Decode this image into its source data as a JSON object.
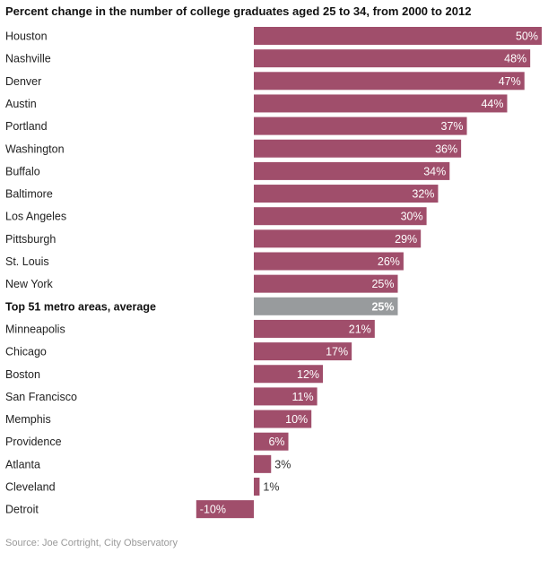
{
  "title": "Percent change in the number of college graduates aged 25 to 34, from 2000 to 2012",
  "source": "Source: Joe Cortright, City Observatory",
  "colors": {
    "bar": "#a04e6b",
    "highlight_bar": "#989b9d",
    "label_inside": "#ffffff",
    "label_outside": "#333333"
  },
  "chart_data": {
    "type": "bar",
    "orientation": "horizontal",
    "title": "Percent change in the number of college graduates aged 25 to 34, from 2000 to 2012",
    "xlabel": "",
    "ylabel": "",
    "xlim": [
      -10,
      50
    ],
    "grid": false,
    "value_suffix": "%",
    "highlight_category": "Top 51 metro areas, average",
    "categories": [
      "Houston",
      "Nashville",
      "Denver",
      "Austin",
      "Portland",
      "Washington",
      "Buffalo",
      "Baltimore",
      "Los Angeles",
      "Pittsburgh",
      "St. Louis",
      "New York",
      "Top 51 metro areas, average",
      "Minneapolis",
      "Chicago",
      "Boston",
      "San Francisco",
      "Memphis",
      "Providence",
      "Atlanta",
      "Cleveland",
      "Detroit"
    ],
    "values": [
      50,
      48,
      47,
      44,
      37,
      36,
      34,
      32,
      30,
      29,
      26,
      25,
      25,
      21,
      17,
      12,
      11,
      10,
      6,
      3,
      1,
      -10
    ]
  }
}
